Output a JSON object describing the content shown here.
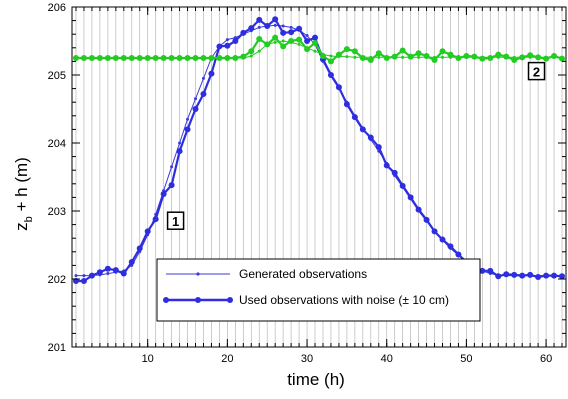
{
  "colors": {
    "generated": "#3b3bd6",
    "used_noise": "#2e2ee0",
    "station2": "#22cc22",
    "grid": "#b8b8b8",
    "axis": "#000000"
  },
  "chart_data": {
    "type": "line",
    "xlabel": "time (h)",
    "ylabel_base": "z",
    "ylabel_sub": "b",
    "ylabel_rest": " + h (m)",
    "xlim": [
      0.5,
      62.5
    ],
    "ylim": [
      201,
      206
    ],
    "x_ticks": [
      10,
      20,
      30,
      40,
      50,
      60
    ],
    "y_ticks": [
      201,
      202,
      203,
      204,
      205,
      206
    ],
    "grid": "vertical lines at every hour",
    "legend_placement": "lower-center",
    "annotations": [
      {
        "text": "1",
        "x": 13.5,
        "y": 202.85
      },
      {
        "text": "2",
        "x": 58.8,
        "y": 205.05
      }
    ],
    "series": [
      {
        "name": "Generated observations",
        "station": "1",
        "style": "thin line with small markers",
        "x": [
          1,
          2,
          3,
          4,
          5,
          6,
          7,
          8,
          9,
          10,
          11,
          12,
          13,
          14,
          15,
          16,
          17,
          18,
          19,
          20,
          21,
          22,
          23,
          24,
          25,
          26,
          27,
          28,
          29,
          30,
          31,
          32,
          33,
          34,
          35,
          36,
          37,
          38,
          39,
          40,
          41,
          42,
          43,
          44,
          45,
          46,
          47,
          48,
          49,
          50,
          51,
          52,
          53,
          54,
          55,
          56,
          57,
          58,
          59,
          60,
          61,
          62
        ],
        "values": [
          202.05,
          202.05,
          202.05,
          202.06,
          202.08,
          202.1,
          202.12,
          202.2,
          202.4,
          202.65,
          202.95,
          203.3,
          203.65,
          204.0,
          204.35,
          204.65,
          204.95,
          205.25,
          205.42,
          205.52,
          205.55,
          205.6,
          205.65,
          205.7,
          205.72,
          205.73,
          205.72,
          205.7,
          205.66,
          205.58,
          205.45,
          205.2,
          204.98,
          204.8,
          204.6,
          204.4,
          204.22,
          204.05,
          203.88,
          203.7,
          203.52,
          203.35,
          203.18,
          203.0,
          202.85,
          202.7,
          202.57,
          202.45,
          202.35,
          202.26,
          202.18,
          202.12,
          202.08,
          202.06,
          202.05,
          202.05,
          202.05,
          202.05,
          202.05,
          202.05,
          202.05,
          202.05
        ]
      },
      {
        "name": "Used observations with noise (± 10 cm)",
        "station": "1",
        "style": "thick line with large markers",
        "x": [
          1,
          2,
          3,
          4,
          5,
          6,
          7,
          8,
          9,
          10,
          11,
          12,
          13,
          14,
          15,
          16,
          17,
          18,
          19,
          20,
          21,
          22,
          23,
          24,
          25,
          26,
          27,
          28,
          29,
          30,
          31,
          32,
          33,
          34,
          35,
          36,
          37,
          38,
          39,
          40,
          41,
          42,
          43,
          44,
          45,
          46,
          47,
          48,
          49,
          50,
          51,
          52,
          53,
          54,
          55,
          56,
          57,
          58,
          59,
          60,
          61,
          62
        ],
        "values": [
          201.97,
          201.97,
          202.05,
          202.1,
          202.15,
          202.13,
          202.08,
          202.25,
          202.45,
          202.7,
          202.88,
          203.25,
          203.38,
          203.88,
          204.2,
          204.5,
          204.72,
          205.02,
          205.42,
          205.43,
          205.5,
          205.62,
          205.69,
          205.81,
          205.72,
          205.82,
          205.62,
          205.63,
          205.68,
          205.5,
          205.55,
          205.23,
          205.0,
          204.82,
          204.57,
          204.38,
          204.2,
          204.08,
          203.94,
          203.67,
          203.56,
          203.37,
          203.2,
          203.02,
          202.87,
          202.7,
          202.58,
          202.48,
          202.36,
          202.25,
          202.17,
          202.12,
          202.12,
          202.04,
          202.07,
          202.06,
          202.05,
          202.06,
          202.03,
          202.05,
          202.05,
          202.04
        ]
      },
      {
        "name": "",
        "station": "2",
        "style": "thin line with small markers",
        "x": [
          1,
          2,
          3,
          4,
          5,
          6,
          7,
          8,
          9,
          10,
          11,
          12,
          13,
          14,
          15,
          16,
          17,
          18,
          19,
          20,
          21,
          22,
          23,
          24,
          25,
          26,
          27,
          28,
          29,
          30,
          31,
          32,
          33,
          34,
          35,
          36,
          37,
          38,
          39,
          40,
          41,
          42,
          43,
          44,
          45,
          46,
          47,
          48,
          49,
          50,
          51,
          52,
          53,
          54,
          55,
          56,
          57,
          58,
          59,
          60,
          61,
          62
        ],
        "values": [
          205.25,
          205.25,
          205.25,
          205.25,
          205.25,
          205.25,
          205.25,
          205.25,
          205.25,
          205.25,
          205.25,
          205.25,
          205.25,
          205.25,
          205.25,
          205.25,
          205.25,
          205.25,
          205.25,
          205.25,
          205.25,
          205.25,
          205.28,
          205.35,
          205.45,
          205.48,
          205.5,
          205.48,
          205.45,
          205.4,
          205.35,
          205.3,
          205.28,
          205.27,
          205.27,
          205.26,
          205.26,
          205.26,
          205.26,
          205.26,
          205.26,
          205.26,
          205.26,
          205.26,
          205.26,
          205.26,
          205.26,
          205.26,
          205.26,
          205.26,
          205.26,
          205.26,
          205.26,
          205.26,
          205.26,
          205.26,
          205.26,
          205.26,
          205.26,
          205.26,
          205.26,
          205.26
        ]
      },
      {
        "name": "",
        "station": "2",
        "style": "thick line with large markers",
        "x": [
          1,
          2,
          3,
          4,
          5,
          6,
          7,
          8,
          9,
          10,
          11,
          12,
          13,
          14,
          15,
          16,
          17,
          18,
          19,
          20,
          21,
          22,
          23,
          24,
          25,
          26,
          27,
          28,
          29,
          30,
          31,
          32,
          33,
          34,
          35,
          36,
          37,
          38,
          39,
          40,
          41,
          42,
          43,
          44,
          45,
          46,
          47,
          48,
          49,
          50,
          51,
          52,
          53,
          54,
          55,
          56,
          57,
          58,
          59,
          60,
          61,
          62
        ],
        "values": [
          205.25,
          205.25,
          205.25,
          205.25,
          205.25,
          205.25,
          205.25,
          205.25,
          205.25,
          205.25,
          205.25,
          205.25,
          205.25,
          205.25,
          205.25,
          205.25,
          205.25,
          205.25,
          205.25,
          205.25,
          205.25,
          205.27,
          205.35,
          205.53,
          205.45,
          205.55,
          205.42,
          205.5,
          205.52,
          205.38,
          205.47,
          205.28,
          205.2,
          205.3,
          205.38,
          205.35,
          205.25,
          205.22,
          205.32,
          205.25,
          205.27,
          205.36,
          205.27,
          205.32,
          205.28,
          205.22,
          205.35,
          205.3,
          205.25,
          205.28,
          205.27,
          205.24,
          205.25,
          205.3,
          205.27,
          205.22,
          205.26,
          205.29,
          205.26,
          205.24,
          205.28,
          205.24
        ]
      }
    ]
  }
}
